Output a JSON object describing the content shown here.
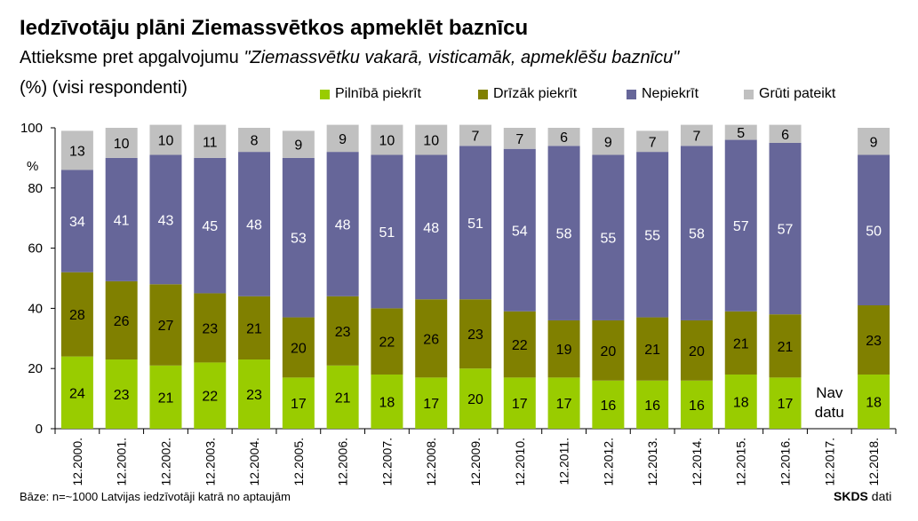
{
  "title": "Iedzīvotāju plāni Ziemassvētkos apmeklēt baznīcu",
  "subtitle_prefix": "Attieksme pret apgalvojumu ",
  "subtitle_quote": "\"Ziemassvētku vakarā, visticamāk, apmeklēšu baznīcu\"",
  "unit_label": "(%) (visi respondenti)",
  "footnote": "Bāze: n=~1000 Latvijas iedzīvotāji katrā no aptaujām",
  "source_brand": "SKDS",
  "source_suffix": " dati",
  "colors": {
    "fully_agree": "#99CC00",
    "rather_agree": "#808000",
    "disagree": "#666699",
    "hard_to_say": "#C0C0C0"
  },
  "chart_data": {
    "type": "bar",
    "stacked": true,
    "title": "Iedzīvotāju plāni Ziemassvētkos apmeklēt baznīcu",
    "ylabel": "%",
    "ylim": [
      0,
      100
    ],
    "yticks": [
      0,
      20,
      40,
      60,
      80,
      100
    ],
    "grid": false,
    "legend_position": "top",
    "categories": [
      "12.2000.",
      "12.2001.",
      "12.2002.",
      "12.2003.",
      "12.2004.",
      "12.2005.",
      "12.2006.",
      "12.2007.",
      "12.2008.",
      "12.2009.",
      "12.2010.",
      "12.2011.",
      "12.2012.",
      "12.2013.",
      "12.2014.",
      "12.2015.",
      "12.2016.",
      "12.2017.",
      "12.2018."
    ],
    "series": [
      {
        "name": "Pilnībā piekrīt",
        "color": "#99CC00",
        "values": [
          24,
          23,
          21,
          22,
          23,
          17,
          21,
          18,
          17,
          20,
          17,
          17,
          16,
          16,
          16,
          18,
          17,
          null,
          18
        ]
      },
      {
        "name": "Drīzāk piekrīt",
        "color": "#808000",
        "values": [
          28,
          26,
          27,
          23,
          21,
          20,
          23,
          22,
          26,
          23,
          22,
          19,
          20,
          21,
          20,
          21,
          21,
          null,
          23
        ]
      },
      {
        "name": "Nepiekrīt",
        "color": "#666699",
        "values": [
          34,
          41,
          43,
          45,
          48,
          53,
          48,
          51,
          48,
          51,
          54,
          58,
          55,
          55,
          58,
          57,
          57,
          null,
          50
        ]
      },
      {
        "name": "Grūti pateikt",
        "color": "#C0C0C0",
        "values": [
          13,
          10,
          10,
          11,
          8,
          9,
          9,
          10,
          10,
          7,
          7,
          6,
          9,
          7,
          7,
          5,
          6,
          null,
          9
        ]
      }
    ],
    "annotations": [
      {
        "category": "12.2017.",
        "lines": [
          "Nav",
          "datu"
        ]
      }
    ]
  }
}
